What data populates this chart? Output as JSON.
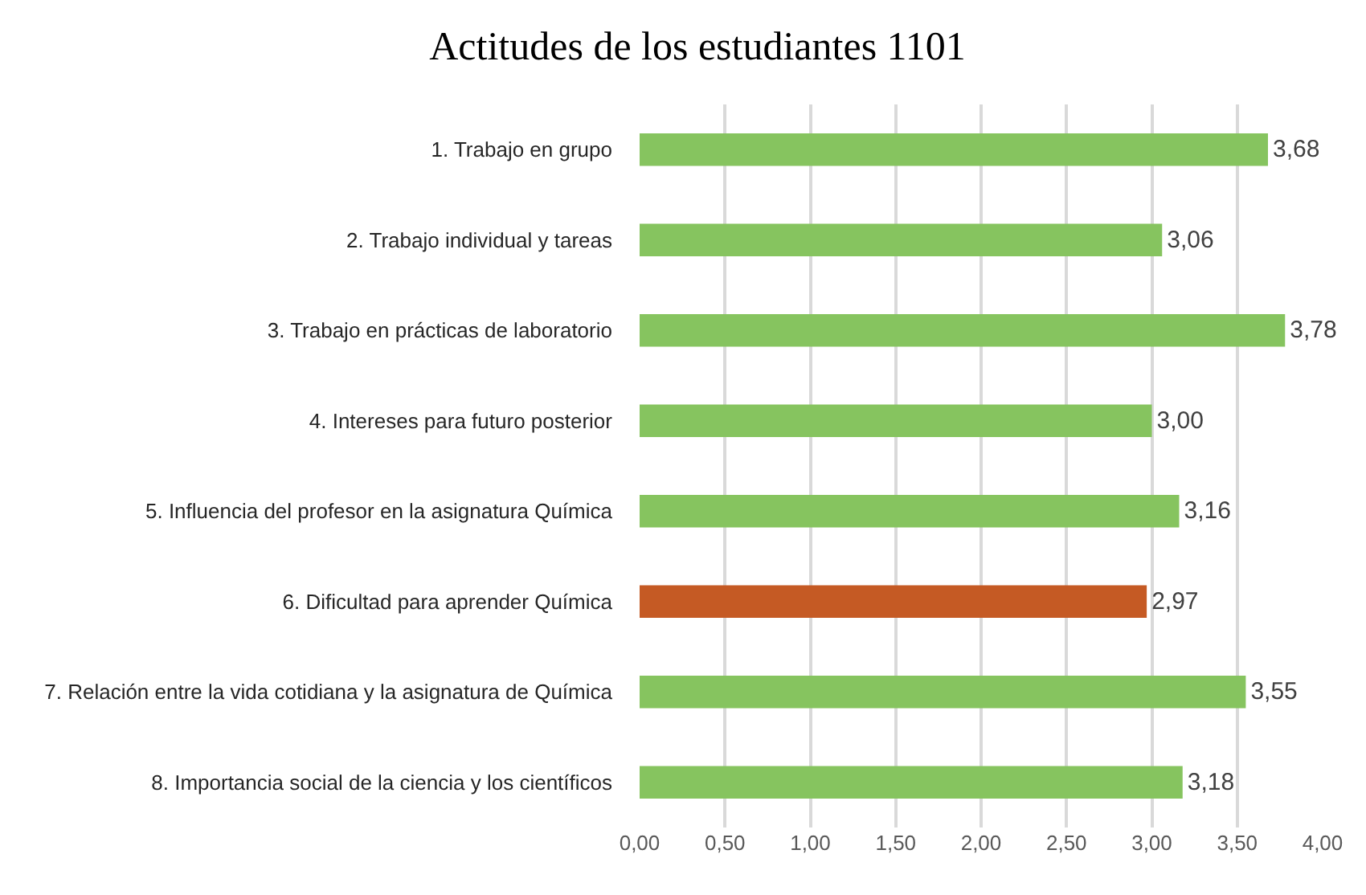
{
  "chart_data": {
    "type": "bar",
    "orientation": "horizontal",
    "title": "Actitudes de los estudiantes 1101",
    "categories": [
      "1. Trabajo en grupo",
      "2. Trabajo individual y tareas",
      "3. Trabajo en prácticas de laboratorio",
      "4. Intereses para futuro posterior",
      "5. Influencia del profesor en la asignatura Química",
      "6. Dificultad para aprender Química",
      "7. Relación entre la vida cotidiana y la asignatura de Química",
      "8. Importancia social de la ciencia y los científicos"
    ],
    "values": [
      3.68,
      3.06,
      3.78,
      3.0,
      3.16,
      2.97,
      3.55,
      3.18
    ],
    "value_labels": [
      "3,68",
      "3,06",
      "3,78",
      "3,00",
      "3,16",
      "2,97",
      "3,55",
      "3,18"
    ],
    "colors": [
      "#86c45f",
      "#86c45f",
      "#86c45f",
      "#86c45f",
      "#86c45f",
      "#c55a24",
      "#86c45f",
      "#86c45f"
    ],
    "xlim": [
      0,
      4
    ],
    "xticks": [
      {
        "value": 0,
        "label": "0,00"
      },
      {
        "value": 0.5,
        "label": "0,50"
      },
      {
        "value": 1,
        "label": "1,00"
      },
      {
        "value": 1.5,
        "label": "1,50"
      },
      {
        "value": 2,
        "label": "2,00"
      },
      {
        "value": 2.5,
        "label": "2,50"
      },
      {
        "value": 3,
        "label": "3,00"
      },
      {
        "value": 3.5,
        "label": "3,50"
      },
      {
        "value": 4,
        "label": "4,00"
      }
    ],
    "grid": "x"
  }
}
